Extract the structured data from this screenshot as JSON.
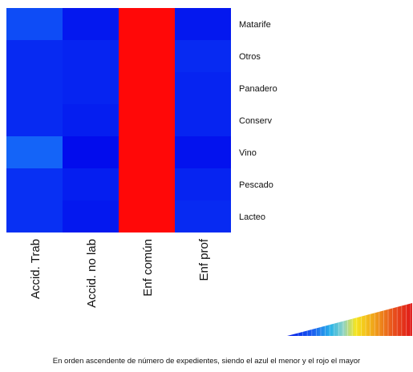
{
  "chart_data": {
    "type": "heatmap",
    "columns": [
      "Accid. Trab",
      "Accid. no lab",
      "Enf común",
      "Enf prof"
    ],
    "rows": [
      "Matarife",
      "Otros",
      "Panadero",
      "Conserv",
      "Vino",
      "Pescado",
      "Lacteo"
    ],
    "values": [
      [
        0.12,
        0.04,
        1.0,
        0.04
      ],
      [
        0.07,
        0.06,
        1.0,
        0.07
      ],
      [
        0.07,
        0.06,
        1.0,
        0.06
      ],
      [
        0.07,
        0.05,
        1.0,
        0.06
      ],
      [
        0.15,
        0.02,
        1.0,
        0.03
      ],
      [
        0.08,
        0.05,
        1.0,
        0.06
      ],
      [
        0.08,
        0.04,
        1.0,
        0.07
      ]
    ],
    "scale": "relative",
    "color_scale": {
      "low_color": "#0000ff",
      "mid_color": "#f6e51e",
      "high_color": "#ff0000",
      "legend": "gradient wedge, bottom-right"
    },
    "caption": "En orden ascendente de número de expedientes, siendo el azul el menor y el rojo el mayor"
  }
}
